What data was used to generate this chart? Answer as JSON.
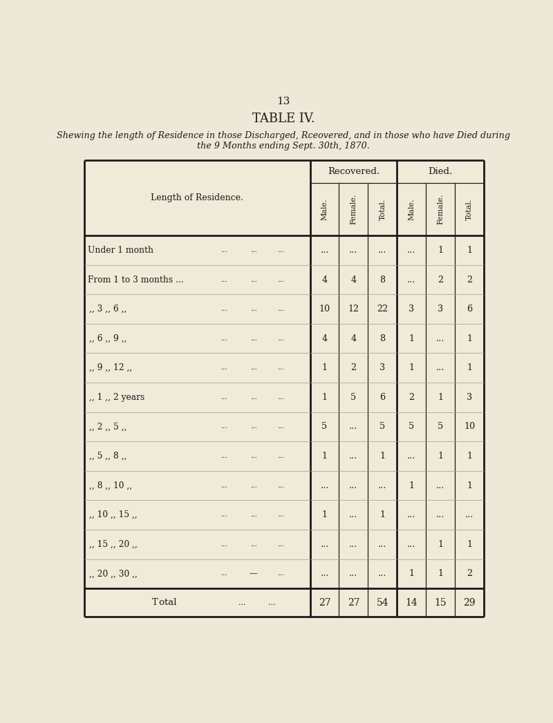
{
  "page_number": "13",
  "title": "TABLE IV.",
  "subtitle_line1": "Shewing the length of Residence in those Discharged, Rceovered, and in those who have Died during",
  "subtitle_line2": "the 9 Months ending Sept. 30th, 1870.",
  "header_col": "Length of Residence.",
  "recovered_label": "Recovered.",
  "died_label": "Died.",
  "col_headers": [
    "Male.",
    "Female.",
    "Total.",
    "Male.",
    "Female.",
    "Total."
  ],
  "rows": [
    {
      "label": "Under 1 month",
      "r_male": "...",
      "r_female": "...",
      "r_total": "...",
      "d_male": "...",
      "d_female": "1",
      "d_total": "1"
    },
    {
      "label": "From 1 to 3 months ...",
      "r_male": "4",
      "r_female": "4",
      "r_total": "8",
      "d_male": "...",
      "d_female": "2",
      "d_total": "2"
    },
    {
      "label": ",, 3 ,, 6 ,,",
      "r_male": "10",
      "r_female": "12",
      "r_total": "22",
      "d_male": "3",
      "d_female": "3",
      "d_total": "6"
    },
    {
      "label": ",, 6 ,, 9 ,,",
      "r_male": "4",
      "r_female": "4",
      "r_total": "8",
      "d_male": "1",
      "d_female": "...",
      "d_total": "1"
    },
    {
      "label": ",, 9 ,, 12 ,,",
      "r_male": "1",
      "r_female": "2",
      "r_total": "3",
      "d_male": "1",
      "d_female": "...",
      "d_total": "1"
    },
    {
      "label": ",, 1 ,, 2 years",
      "r_male": "1",
      "r_female": "5",
      "r_total": "6",
      "d_male": "2",
      "d_female": "1",
      "d_total": "3"
    },
    {
      "label": ",, 2 ,, 5 ,,",
      "r_male": "5",
      "r_female": "...",
      "r_total": "5",
      "d_male": "5",
      "d_female": "5",
      "d_total": "10"
    },
    {
      "label": ",, 5 ,, 8 ,,",
      "r_male": "1",
      "r_female": "...",
      "r_total": "1",
      "d_male": "...",
      "d_female": "1",
      "d_total": "1"
    },
    {
      "label": ",, 8 ,, 10 ,,",
      "r_male": "...",
      "r_female": "...",
      "r_total": "...",
      "d_male": "1",
      "d_female": "...",
      "d_total": "1"
    },
    {
      "label": ",, 10 ,, 15 ,,",
      "r_male": "1",
      "r_female": "...",
      "r_total": "1",
      "d_male": "...",
      "d_female": "...",
      "d_total": "..."
    },
    {
      "label": ",, 15 ,, 20 ,,",
      "r_male": "...",
      "r_female": "...",
      "r_total": "...",
      "d_male": "...",
      "d_female": "1",
      "d_total": "1"
    },
    {
      "label": ",, 20 ,, 30 ,,",
      "has_dash": true,
      "r_male": "...",
      "r_female": "...",
      "r_total": "...",
      "d_male": "1",
      "d_female": "1",
      "d_total": "2"
    }
  ],
  "totals": {
    "r_male": "27",
    "r_female": "27",
    "r_total": "54",
    "d_male": "14",
    "d_female": "15",
    "d_total": "29"
  },
  "bg_color": "#ede8d8",
  "table_bg": "#f0ead8",
  "line_color": "#1a1a1a",
  "text_color": "#1a1a1a"
}
